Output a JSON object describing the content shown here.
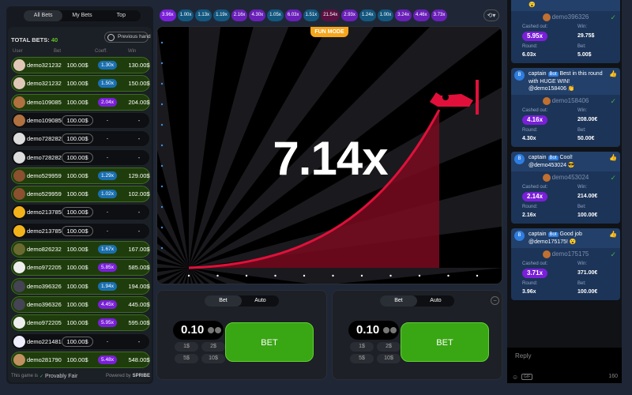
{
  "left": {
    "tabs": [
      "All Bets",
      "My Bets",
      "Top"
    ],
    "total_label": "TOTAL BETS:",
    "total_count": "40",
    "previous_hand": "Previous hand",
    "columns": [
      "User",
      "Bet",
      "Coeff.",
      "Win"
    ],
    "rows": [
      {
        "user": "demo321232",
        "bet": "100.00$",
        "coef": "1.30x",
        "win": "130.00$",
        "c": "#1a6fb0",
        "av": "#e0c8b8"
      },
      {
        "user": "demo321232",
        "bet": "100.00$",
        "coef": "1.50x",
        "win": "150.00$",
        "c": "#1a6fb0",
        "av": "#e0c8b8"
      },
      {
        "user": "demo109085",
        "bet": "100.00$",
        "coef": "2.04x",
        "win": "204.00$",
        "c": "#7a1fd8",
        "av": "#b07040"
      },
      {
        "user": "demo109085",
        "bet": "100.00$",
        "coef": "-",
        "win": "-",
        "av": "#b07040"
      },
      {
        "user": "demo728282",
        "bet": "100.00$",
        "coef": "-",
        "win": "-",
        "av": "#ddd"
      },
      {
        "user": "demo728282",
        "bet": "100.00$",
        "coef": "-",
        "win": "-",
        "av": "#ddd"
      },
      {
        "user": "demo529959",
        "bet": "100.00$",
        "coef": "1.29x",
        "win": "129.00$",
        "c": "#1a6fb0",
        "av": "#8a5030"
      },
      {
        "user": "demo529959",
        "bet": "100.00$",
        "coef": "1.02x",
        "win": "102.00$",
        "c": "#1a6fb0",
        "av": "#8a5030"
      },
      {
        "user": "demo213785",
        "bet": "100.00$",
        "coef": "-",
        "win": "-",
        "av": "#f2b21a"
      },
      {
        "user": "demo213785",
        "bet": "100.00$",
        "coef": "-",
        "win": "-",
        "av": "#f2b21a"
      },
      {
        "user": "demo826232",
        "bet": "100.00$",
        "coef": "1.67x",
        "win": "167.00$",
        "c": "#1a6fb0",
        "av": "#6a6a30"
      },
      {
        "user": "demo972205",
        "bet": "100.00$",
        "coef": "5.85x",
        "win": "585.00$",
        "c": "#7a1fd8",
        "av": "#eee"
      },
      {
        "user": "demo396326",
        "bet": "100.00$",
        "coef": "1.94x",
        "win": "194.00$",
        "c": "#1a6fb0",
        "av": "#445"
      },
      {
        "user": "demo396326",
        "bet": "100.00$",
        "coef": "4.45x",
        "win": "445.00$",
        "c": "#7a1fd8",
        "av": "#445"
      },
      {
        "user": "demo972205",
        "bet": "100.00$",
        "coef": "5.95x",
        "win": "595.00$",
        "c": "#7a1fd8",
        "av": "#eee"
      },
      {
        "user": "demo221481",
        "bet": "100.00$",
        "coef": "-",
        "win": "-",
        "av": "#eef"
      },
      {
        "user": "demo281790",
        "bet": "100.00$",
        "coef": "5.48x",
        "win": "548.00$",
        "c": "#7a1fd8",
        "av": "#c09060"
      }
    ],
    "footer_left": "This game is",
    "provably_fair": "Provably Fair",
    "powered_by": "Powered by",
    "brand": "SPRIBE"
  },
  "multipliers": [
    {
      "v": "3.96x",
      "c": "#7a1fd8"
    },
    {
      "v": "1.00x",
      "c": "#13577f"
    },
    {
      "v": "1.13x",
      "c": "#13577f"
    },
    {
      "v": "1.19x",
      "c": "#13577f"
    },
    {
      "v": "2.16x",
      "c": "#6a1fb8"
    },
    {
      "v": "4.30x",
      "c": "#6a1fb8"
    },
    {
      "v": "1.05x",
      "c": "#13577f"
    },
    {
      "v": "6.03x",
      "c": "#6a1fb8"
    },
    {
      "v": "1.51x",
      "c": "#13577f"
    },
    {
      "v": "21.54x",
      "c": "#5a1040"
    },
    {
      "v": "2.93x",
      "c": "#6a1fb8"
    },
    {
      "v": "1.24x",
      "c": "#13577f"
    },
    {
      "v": "1.00x",
      "c": "#13577f"
    },
    {
      "v": "3.24x",
      "c": "#6a1fb8"
    },
    {
      "v": "4.46x",
      "c": "#6a1fb8"
    },
    {
      "v": "3.73x",
      "c": "#6a1fb8"
    }
  ],
  "game": {
    "badge": "FUN MODE",
    "multiplier": "7.14x",
    "curve_color": "#e0103a"
  },
  "bet_panels": [
    {
      "tabs": [
        "Bet",
        "Auto"
      ],
      "amount": "0.10",
      "quick": [
        "1$",
        "2$",
        "5$",
        "10$"
      ],
      "button": "BET"
    },
    {
      "tabs": [
        "Bet",
        "Auto"
      ],
      "amount": "0.10",
      "quick": [
        "1$",
        "2$",
        "5$",
        "10$"
      ],
      "button": "BET"
    }
  ],
  "chat": {
    "labels": {
      "cashed": "Cashed out:",
      "win": "Win:",
      "round": "Round:",
      "bet": "Bet:"
    },
    "cards": [
      {
        "user": "demo396326",
        "cashed": "5.95x",
        "win": "29.75$",
        "round": "6.03x",
        "bet": "5.00$"
      },
      {
        "sender": "captain",
        "tag": "Bot",
        "text": "Best in this round with HUGE WIN! @demo158406 👏",
        "user": "demo158406",
        "cashed": "4.16x",
        "win": "208.00€",
        "round": "4.30x",
        "bet": "50.00€"
      },
      {
        "sender": "captain",
        "tag": "Bot",
        "text": "Cool! @demo453024 😎",
        "user": "demo453024",
        "cashed": "2.14x",
        "win": "214.00€",
        "round": "2.16x",
        "bet": "100.00€"
      },
      {
        "sender": "captain",
        "tag": "Bot",
        "text": "Good job @demo175175! 😮",
        "user": "demo175175",
        "cashed": "3.71x",
        "win": "371.00€",
        "round": "3.96x",
        "bet": "100.00€"
      }
    ],
    "reply_placeholder": "Reply",
    "gif": "GIF",
    "char_count": "160"
  }
}
